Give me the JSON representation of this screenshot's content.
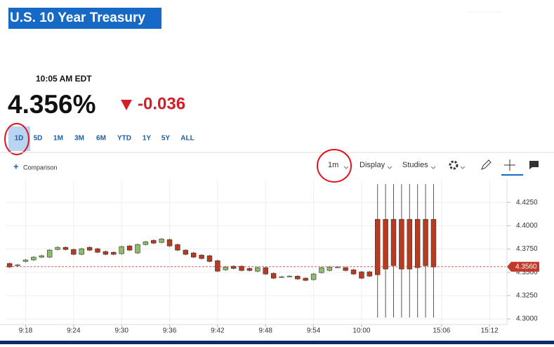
{
  "header": {
    "title": "U.S. 10 Year Treasury",
    "time": "10:05 AM EDT",
    "price": "4.356%",
    "change": "-0.036"
  },
  "ranges": [
    "1D",
    "5D",
    "1M",
    "3M",
    "6M",
    "YTD",
    "1Y",
    "5Y",
    "ALL"
  ],
  "toolbar": {
    "comparison": "Comparison",
    "interval": "1m",
    "display": "Display",
    "studies": "Studies"
  },
  "chart_data": {
    "type": "candlestick",
    "categories": [
      null,
      null,
      null,
      null,
      null,
      null,
      null,
      null,
      null,
      null,
      null,
      null,
      null,
      null,
      null,
      null,
      null,
      null,
      null,
      null,
      null,
      null,
      null,
      null,
      null,
      null,
      null,
      null,
      null,
      null,
      null,
      null,
      null,
      null,
      null,
      null,
      null,
      null,
      null,
      null,
      null,
      null,
      null,
      null,
      null,
      null,
      null,
      null,
      null,
      null,
      null,
      null,
      null,
      null
    ],
    "open": [
      4.3595,
      4.3572,
      4.3617,
      4.3633,
      4.3663,
      4.3663,
      4.3745,
      4.3768,
      4.3745,
      4.3693,
      4.3768,
      4.3753,
      4.3723,
      4.3715,
      4.37,
      4.3783,
      4.3708,
      4.3798,
      4.3843,
      4.3821,
      4.3851,
      4.3798,
      4.3738,
      4.3708,
      4.3685,
      4.3678,
      4.3625,
      4.3527,
      4.3565,
      4.3565,
      4.3542,
      4.3512,
      4.355,
      4.3489,
      4.3452,
      4.3459,
      4.3459,
      4.3437,
      4.3422,
      4.3497,
      4.352,
      4.3557,
      4.355,
      4.3527,
      4.3505,
      4.3505,
      4.4069,
      4.4069,
      4.4069,
      4.4069,
      4.4069,
      4.4069,
      4.4069,
      4.4069
    ],
    "high": [
      4.3605,
      4.359,
      4.3643,
      4.3673,
      4.3688,
      4.3748,
      4.3778,
      4.3778,
      4.3755,
      4.3763,
      4.3778,
      4.3763,
      4.3733,
      4.3725,
      4.3786,
      4.3793,
      4.3808,
      4.3838,
      4.3853,
      4.3868,
      4.3861,
      4.3808,
      4.3748,
      4.3718,
      4.3695,
      4.3688,
      4.3635,
      4.3567,
      4.3575,
      4.3575,
      4.3552,
      4.356,
      4.356,
      4.3499,
      4.3462,
      4.3469,
      4.3469,
      4.3447,
      4.3492,
      4.356,
      4.3567,
      4.3567,
      4.356,
      4.3537,
      4.3515,
      4.3515,
      4.4446,
      4.4446,
      4.4446,
      4.4446,
      4.4446,
      4.4446,
      4.4446,
      4.4446
    ],
    "low": [
      4.3547,
      4.3562,
      4.3607,
      4.3623,
      4.3653,
      4.3653,
      4.3735,
      4.3735,
      4.3683,
      4.3683,
      4.3728,
      4.3705,
      4.3683,
      4.3683,
      4.369,
      4.3728,
      4.3698,
      4.3788,
      4.3803,
      4.3811,
      4.3773,
      4.3728,
      4.3683,
      4.3653,
      4.3638,
      4.3607,
      4.3502,
      4.3517,
      4.3532,
      4.351,
      4.351,
      4.3502,
      4.3472,
      4.3427,
      4.3442,
      4.3449,
      4.3419,
      4.3404,
      4.3412,
      4.3487,
      4.351,
      4.3547,
      4.351,
      4.3472,
      4.3427,
      4.3449,
      4.3015,
      4.3015,
      4.3015,
      4.3015,
      4.3015,
      4.3015,
      4.3015,
      4.3015
    ],
    "close": [
      4.3557,
      4.358,
      4.3633,
      4.3663,
      4.3678,
      4.3738,
      4.3768,
      4.3745,
      4.3693,
      4.3753,
      4.3738,
      4.3715,
      4.3693,
      4.3693,
      4.3776,
      4.3738,
      4.3798,
      4.3828,
      4.3813,
      4.3858,
      4.3783,
      4.3738,
      4.3693,
      4.3663,
      4.3648,
      4.3617,
      4.3512,
      4.3557,
      4.3542,
      4.352,
      4.352,
      4.355,
      4.3482,
      4.3437,
      4.3452,
      4.3459,
      4.3429,
      4.3414,
      4.3482,
      4.355,
      4.3557,
      4.3557,
      4.352,
      4.3482,
      4.3437,
      4.3459,
      4.3474,
      4.3535,
      4.3572,
      4.3535,
      4.3535,
      4.355,
      4.3572,
      4.3557
    ],
    "up_color": "#8dbd6a",
    "down_color": "#b83a1f",
    "xlim": [
      -0.5,
      62
    ],
    "xticks": [
      {
        "value": 2,
        "label": "9:18"
      },
      {
        "value": 8,
        "label": "9:24"
      },
      {
        "value": 14,
        "label": "9:30"
      },
      {
        "value": 20,
        "label": "9:36"
      },
      {
        "value": 26,
        "label": "9:42"
      },
      {
        "value": 32,
        "label": "9:48"
      },
      {
        "value": 38,
        "label": "9:54"
      },
      {
        "value": 44,
        "label": "10:00"
      },
      {
        "value": 54,
        "label": "15:06"
      },
      {
        "value": 60,
        "label": "15:12"
      }
    ],
    "ylim": [
      4.294,
      4.45
    ],
    "yticks": [
      {
        "value": 4.3,
        "label": "4.3000"
      },
      {
        "value": 4.325,
        "label": "4.3250"
      },
      {
        "value": 4.35,
        "label": "4.3500"
      },
      {
        "value": 4.375,
        "label": "4.3750"
      },
      {
        "value": 4.4,
        "label": "4.4000"
      },
      {
        "value": 4.425,
        "label": "4.4250"
      }
    ],
    "last": {
      "value": 4.356,
      "label": "4.3560"
    },
    "grid": true
  }
}
